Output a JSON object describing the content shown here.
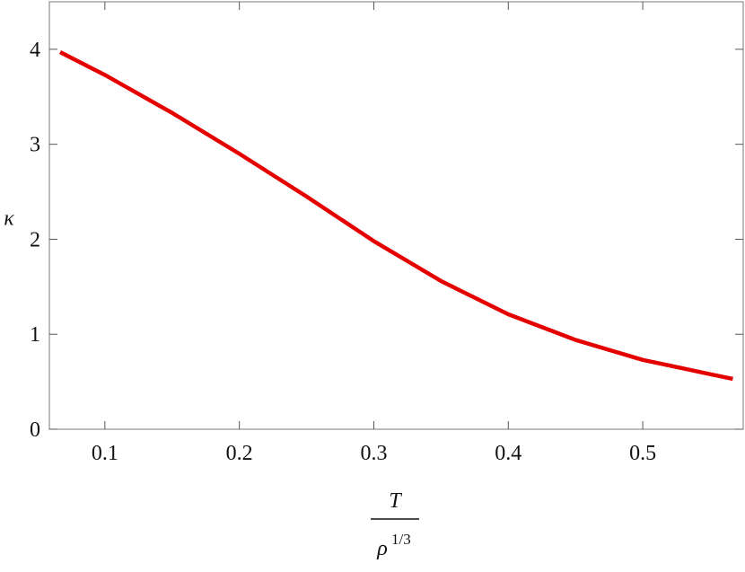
{
  "chart_data": {
    "type": "line",
    "ylabel": "κ",
    "xlabel": {
      "numerator": "T",
      "denominator": "ρ",
      "exponent": "1/3"
    },
    "x": [
      0.0667,
      0.1,
      0.15,
      0.2,
      0.25,
      0.3,
      0.35,
      0.4,
      0.45,
      0.5,
      0.55,
      0.567
    ],
    "series": [
      {
        "color": "#e50000",
        "values": [
          3.97,
          3.73,
          3.33,
          2.9,
          2.45,
          1.98,
          1.56,
          1.21,
          0.94,
          0.73,
          0.58,
          0.53
        ]
      }
    ],
    "xlim": [
      0.0587,
      0.5747
    ],
    "ylim": [
      0,
      4.5
    ],
    "xticks": [
      0.1,
      0.2,
      0.3,
      0.4,
      0.5
    ],
    "yticks": [
      0,
      1,
      2,
      3,
      4
    ],
    "grid": false
  }
}
